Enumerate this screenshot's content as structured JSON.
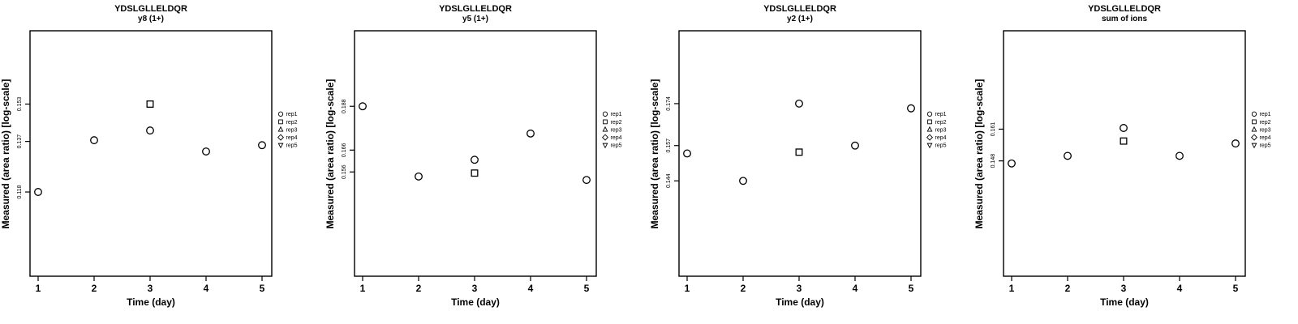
{
  "figure": {
    "background": "#ffffff",
    "foreground": "#000000",
    "panel_count": 4
  },
  "legend": {
    "position": "right",
    "items": [
      {
        "label": "rep1",
        "marker": "circle"
      },
      {
        "label": "rep2",
        "marker": "square"
      },
      {
        "label": "rep3",
        "marker": "triangle-up"
      },
      {
        "label": "rep4",
        "marker": "diamond"
      },
      {
        "label": "rep5",
        "marker": "triangle-down"
      }
    ]
  },
  "chart_data": [
    {
      "type": "scatter",
      "title": "YDSLGLLELDQR",
      "subtitle": "y8 (1+)",
      "xlabel": "Time (day)",
      "ylabel": "Measured (area ratio) [log-scale]",
      "yscale": "log",
      "xticks": [
        1,
        2,
        3,
        4,
        5
      ],
      "xlim": [
        0.85,
        5.17
      ],
      "ylim": [
        0.092,
        0.19
      ],
      "yticks": [
        0.118,
        0.137,
        0.153
      ],
      "grid": false,
      "series": [
        {
          "name": "rep1",
          "marker": "circle",
          "points": [
            [
              1,
              0.118
            ],
            [
              2,
              0.1375
            ],
            [
              3,
              0.1415
            ],
            [
              4,
              0.133
            ],
            [
              5,
              0.1355
            ]
          ]
        },
        {
          "name": "rep2",
          "marker": "square",
          "points": [
            [
              3,
              0.153
            ]
          ]
        }
      ]
    },
    {
      "type": "scatter",
      "title": "YDSLGLLELDQR",
      "subtitle": "y5 (1+)",
      "xlabel": "Time (day)",
      "ylabel": "Measured (area ratio) [log-scale]",
      "yscale": "log",
      "xticks": [
        1,
        2,
        3,
        4,
        5
      ],
      "xlim": [
        0.85,
        5.17
      ],
      "ylim": [
        0.116,
        0.233
      ],
      "yticks": [
        0.156,
        0.166,
        0.188
      ],
      "grid": false,
      "series": [
        {
          "name": "rep1",
          "marker": "circle",
          "points": [
            [
              1,
              0.188
            ],
            [
              2,
              0.154
            ],
            [
              3,
              0.1615
            ],
            [
              4,
              0.174
            ],
            [
              5,
              0.1525
            ]
          ]
        },
        {
          "name": "rep2",
          "marker": "square",
          "points": [
            [
              3,
              0.1555
            ]
          ]
        }
      ]
    },
    {
      "type": "scatter",
      "title": "YDSLGLLELDQR",
      "subtitle": "y2 (1+)",
      "xlabel": "Time (day)",
      "ylabel": "Measured (area ratio) [log-scale]",
      "yscale": "log",
      "xticks": [
        1,
        2,
        3,
        4,
        5
      ],
      "xlim": [
        0.85,
        5.17
      ],
      "ylim": [
        0.114,
        0.208
      ],
      "yticks": [
        0.144,
        0.157,
        0.174
      ],
      "grid": false,
      "series": [
        {
          "name": "rep1",
          "marker": "circle",
          "points": [
            [
              1,
              0.154
            ],
            [
              2,
              0.144
            ],
            [
              3,
              0.174
            ],
            [
              4,
              0.157
            ],
            [
              5,
              0.172
            ]
          ]
        },
        {
          "name": "rep2",
          "marker": "square",
          "points": [
            [
              3,
              0.1545
            ]
          ]
        }
      ]
    },
    {
      "type": "scatter",
      "title": "YDSLGLLELDQR",
      "subtitle": "sum of ions",
      "xlabel": "Time (day)",
      "ylabel": "Measured (area ratio) [log-scale]",
      "yscale": "log",
      "xticks": [
        1,
        2,
        3,
        4,
        5
      ],
      "xlim": [
        0.85,
        5.17
      ],
      "ylim": [
        0.109,
        0.209
      ],
      "yticks": [
        0.148,
        0.161
      ],
      "grid": false,
      "series": [
        {
          "name": "rep1",
          "marker": "circle",
          "points": [
            [
              1,
              0.147
            ],
            [
              2,
              0.15
            ],
            [
              3,
              0.1615
            ],
            [
              4,
              0.15
            ],
            [
              5,
              0.155
            ]
          ]
        },
        {
          "name": "rep2",
          "marker": "square",
          "points": [
            [
              3,
              0.156
            ]
          ]
        }
      ]
    }
  ]
}
